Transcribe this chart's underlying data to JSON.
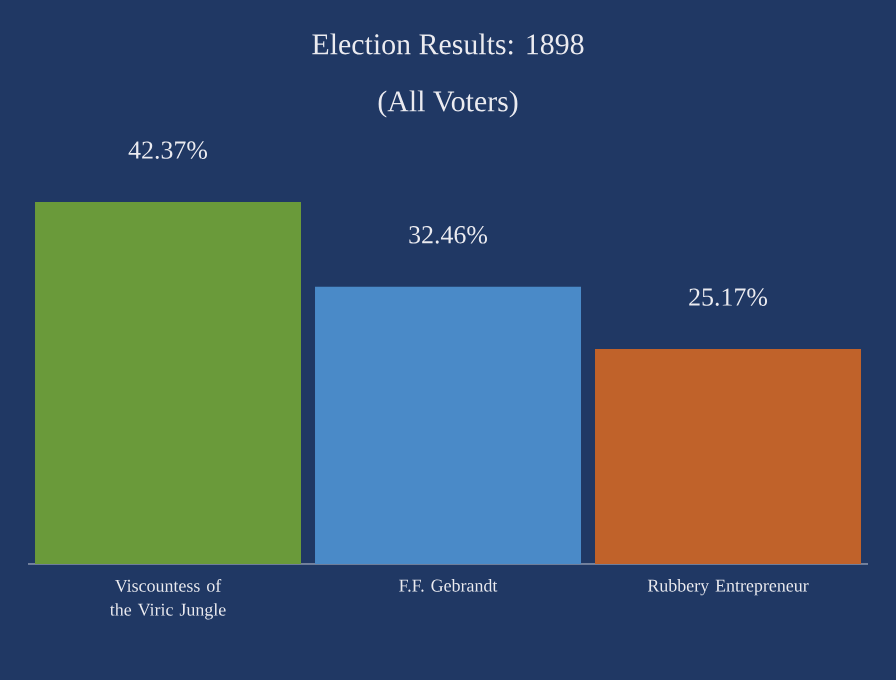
{
  "chart_data": {
    "type": "bar",
    "title": "Election Results: 1898",
    "subtitle": "(All Voters)",
    "categories": [
      "Viscountess of the Viric Jungle",
      "F.F. Gebrandt",
      "Rubbery Entrepreneur"
    ],
    "values": [
      42.37,
      32.46,
      25.17
    ],
    "colors": [
      "#6a9a3a",
      "#4a8ac8",
      "#c0622a"
    ],
    "value_labels": [
      "42.37%",
      "32.46%",
      "25.17%"
    ]
  }
}
